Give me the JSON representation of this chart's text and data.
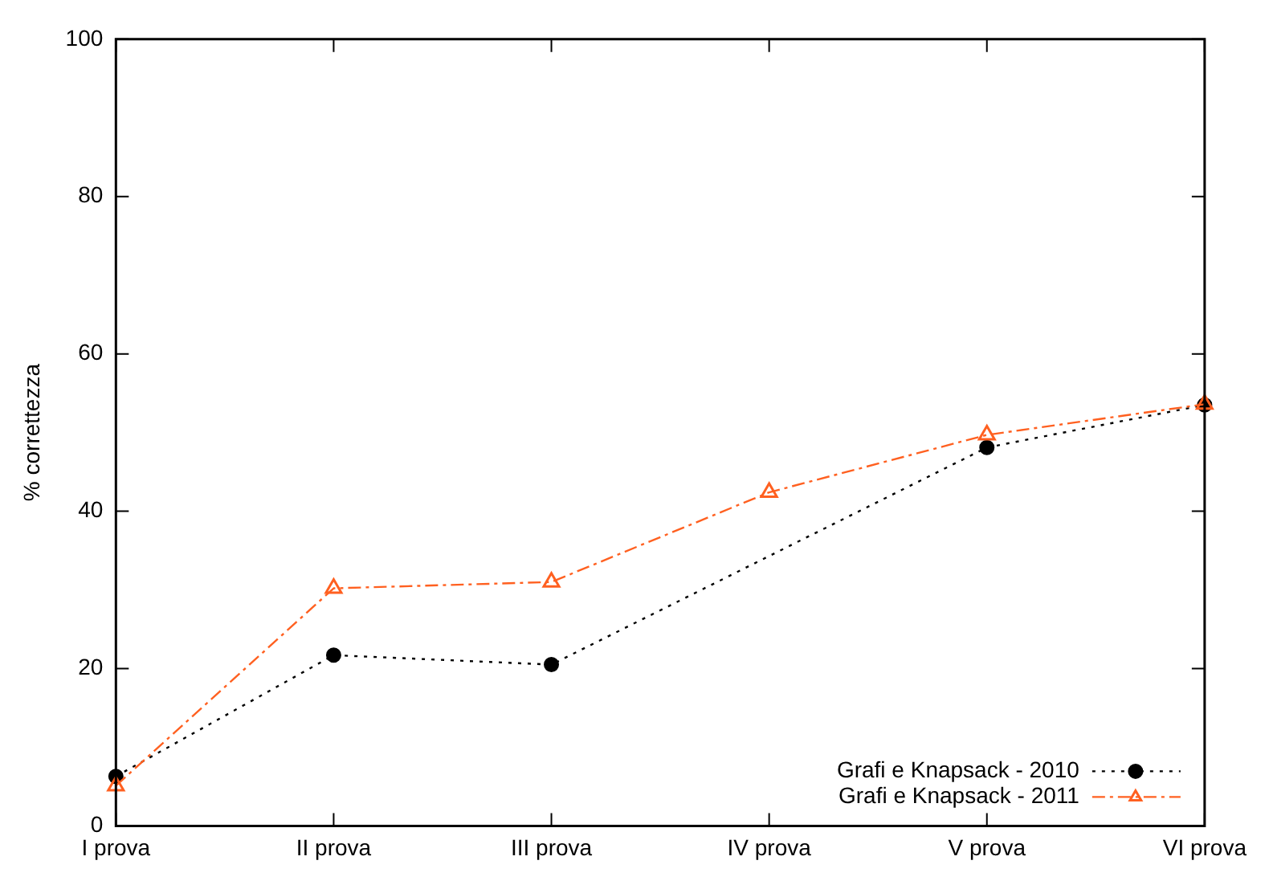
{
  "chart_data": {
    "type": "line",
    "ylabel": "% correttezza",
    "categories": [
      "I prova",
      "II prova",
      "III prova",
      "IV prova",
      "V prova",
      "VI prova"
    ],
    "ylim": [
      0,
      100
    ],
    "yticks": [
      0,
      20,
      40,
      60,
      80,
      100
    ],
    "grid": false,
    "legend": "bottom right",
    "series": [
      {
        "name": "Grafi e Knapsack - 2010",
        "color": "#000000",
        "marker": "circle",
        "line_style": "dotted",
        "values": [
          6.3,
          21.7,
          20.5,
          null,
          48.1,
          53.5
        ]
      },
      {
        "name": "Grafi e Knapsack - 2011",
        "color": "#ff6020",
        "marker": "triangle",
        "line_style": "dashed",
        "values": [
          5.1,
          30.2,
          31.0,
          42.4,
          49.7,
          53.6
        ]
      }
    ]
  }
}
